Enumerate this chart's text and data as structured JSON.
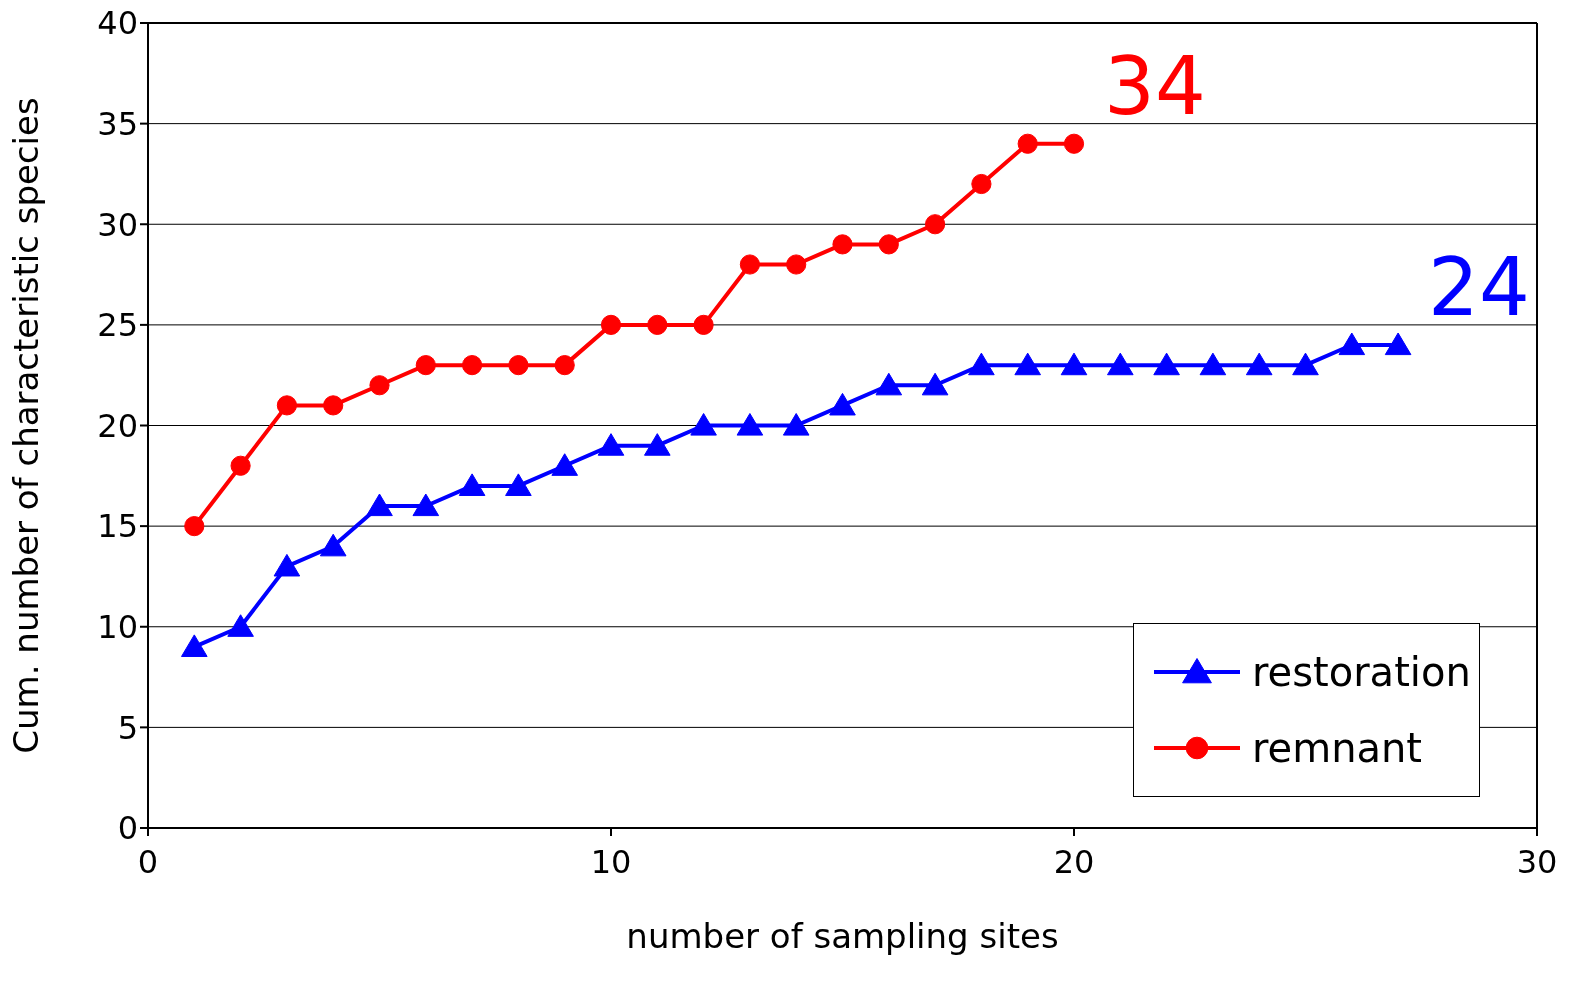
{
  "chart_data": {
    "type": "line",
    "xlabel": "number of sampling sites",
    "ylabel": "Cum. number of characteristic species",
    "xlim": [
      0,
      30
    ],
    "xticks": [
      0,
      10,
      20,
      30
    ],
    "ylim": [
      0,
      40
    ],
    "yticks": [
      0,
      5,
      10,
      15,
      20,
      25,
      30,
      35,
      40
    ],
    "grid": "y",
    "legend": "bottom right",
    "line_style": "solid",
    "series": [
      {
        "name": "restoration",
        "color": "#0000ff",
        "marker": "triangle",
        "x": [
          1,
          2,
          3,
          4,
          5,
          6,
          7,
          8,
          9,
          10,
          11,
          12,
          13,
          14,
          15,
          16,
          17,
          18,
          19,
          20,
          21,
          22,
          23,
          24,
          25,
          26,
          27
        ],
        "values": [
          9,
          10,
          13,
          14,
          16,
          16,
          17,
          17,
          18,
          19,
          19,
          20,
          20,
          20,
          21,
          22,
          22,
          23,
          23,
          23,
          23,
          23,
          23,
          23,
          23,
          24,
          24
        ]
      },
      {
        "name": "remnant",
        "color": "#ff0000",
        "marker": "circle",
        "x": [
          1,
          2,
          3,
          4,
          5,
          6,
          7,
          8,
          9,
          10,
          11,
          12,
          13,
          14,
          15,
          16,
          17,
          18,
          19,
          20
        ],
        "values": [
          15,
          18,
          21,
          21,
          22,
          23,
          23,
          23,
          23,
          25,
          25,
          25,
          28,
          28,
          29,
          29,
          30,
          32,
          34,
          34
        ]
      }
    ],
    "annotations": [
      {
        "text": "34",
        "x": 20,
        "y": 34
      },
      {
        "text": "24",
        "x": 27,
        "y": 24
      }
    ]
  }
}
